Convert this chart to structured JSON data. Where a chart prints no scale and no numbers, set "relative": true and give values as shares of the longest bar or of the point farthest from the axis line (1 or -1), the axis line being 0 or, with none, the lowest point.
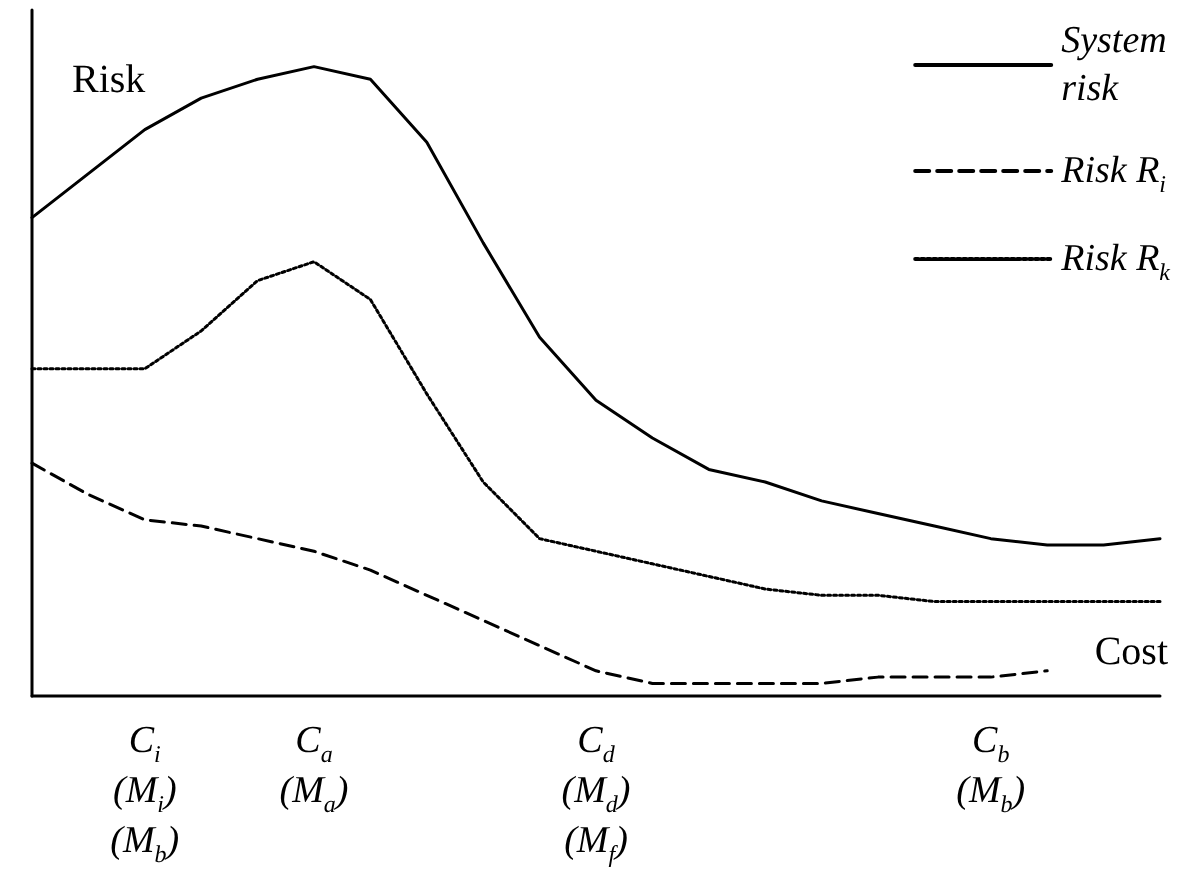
{
  "chart_data": {
    "type": "line",
    "relative": true,
    "xlabel": "Cost",
    "ylabel": "Risk",
    "legend": "top right",
    "grid": false,
    "tick_labels": "x",
    "marker": "none",
    "categories": [
      null,
      null,
      "C$_{i}$\n(M$_{i}$)\n(M$_{b}$)",
      null,
      null,
      "C$_{a}$\n(M$_{a}$)",
      null,
      null,
      null,
      null,
      "C$_{d}$\n(M$_{d}$)\n(M$_{f}$)",
      null,
      null,
      null,
      null,
      null,
      null,
      "C$_{b}$\n(M$_{b}$)",
      null,
      null,
      null
    ],
    "series": [
      {
        "name": "System risk",
        "color": "#000000",
        "line_style": "solid",
        "values": [
          0.76,
          0.83,
          0.9,
          0.95,
          0.98,
          1,
          0.98,
          0.88,
          0.72,
          0.57,
          0.47,
          0.41,
          0.36,
          0.34,
          0.31,
          0.29,
          0.27,
          0.25,
          0.24,
          0.24,
          0.25
        ]
      },
      {
        "name": "Risk R$_{i}$",
        "color": "#000000",
        "line_style": "dashed",
        "values": [
          0.37,
          0.32,
          0.28,
          0.27,
          0.25,
          0.23,
          0.2,
          0.16,
          0.12,
          0.08,
          0.04,
          0.02,
          0.02,
          0.02,
          0.02,
          0.03,
          0.03,
          0.03,
          0.04,
          null,
          null
        ]
      },
      {
        "name": "Risk R$_{k}$",
        "color": "#000000",
        "line_style": "dotted",
        "values": [
          0.52,
          0.52,
          0.52,
          0.58,
          0.66,
          0.69,
          0.63,
          0.48,
          0.34,
          0.25,
          0.23,
          0.21,
          0.19,
          0.17,
          0.16,
          0.16,
          0.15,
          0.15,
          0.15,
          0.15,
          0.15
        ]
      }
    ]
  }
}
